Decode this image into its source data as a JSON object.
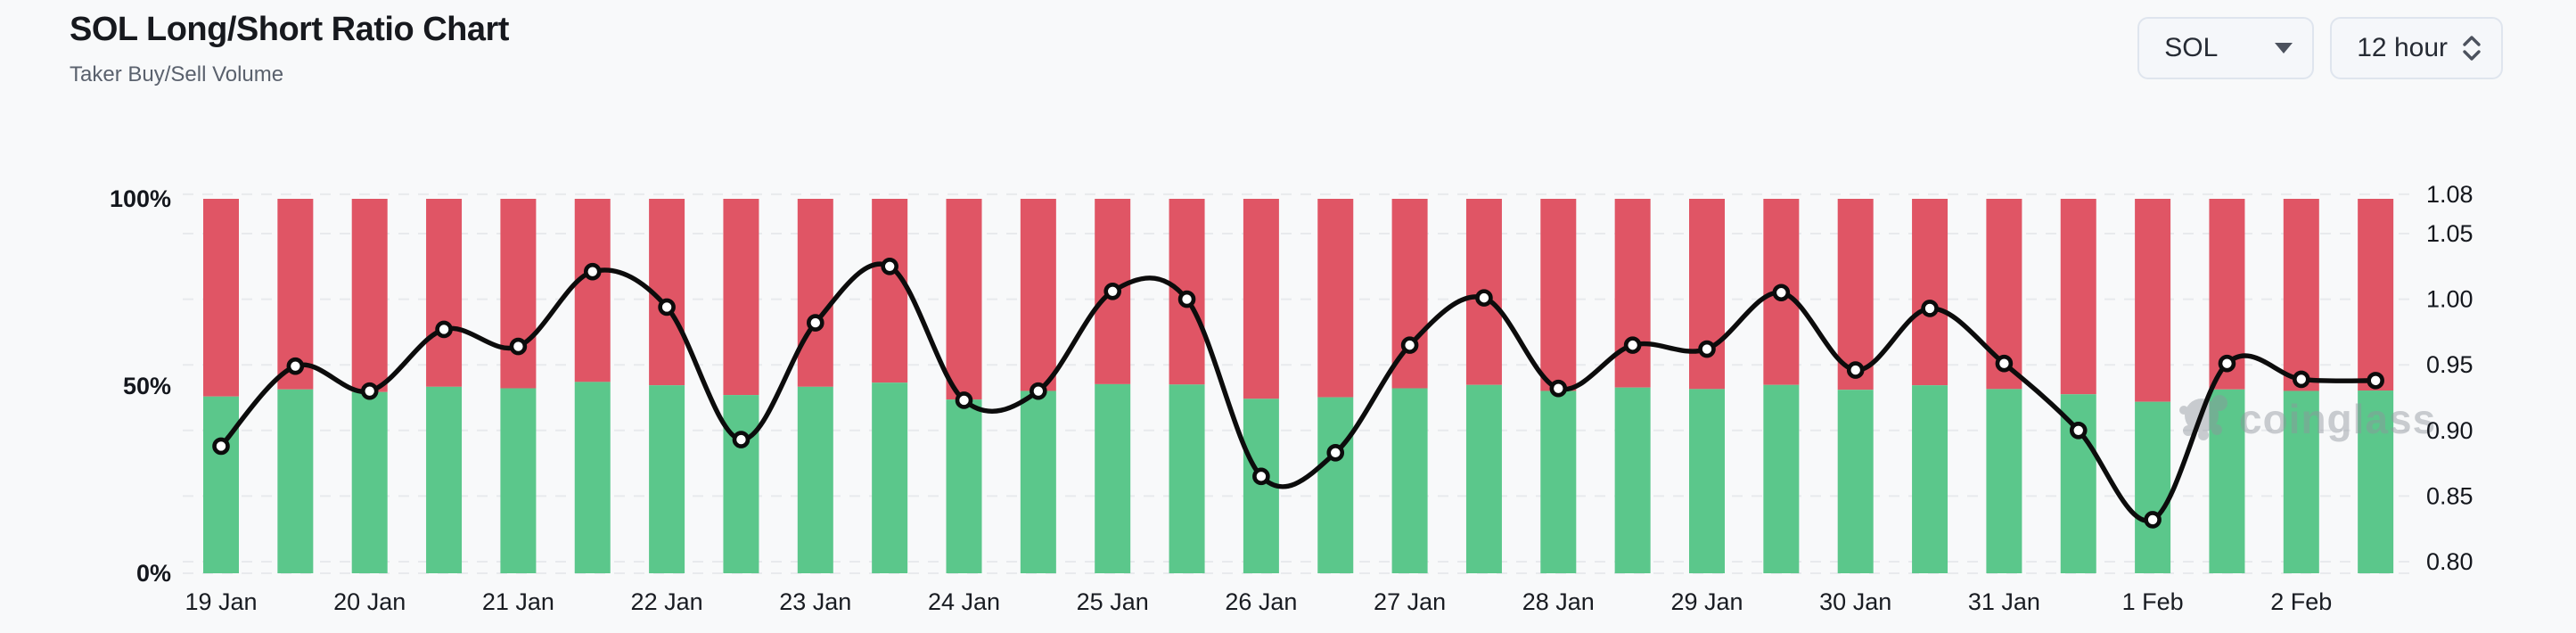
{
  "header": {
    "title": "SOL Long/Short Ratio Chart",
    "subtitle": "Taker Buy/Sell Volume"
  },
  "controls": {
    "symbol_select": {
      "value": "SOL"
    },
    "interval_select": {
      "value": "12 hour"
    }
  },
  "watermark": {
    "text": "coinglass"
  },
  "chart_data": {
    "type": "bar+line",
    "title": "SOL Long/Short Ratio Chart",
    "subtitle": "Taker Buy/Sell Volume",
    "interval": "12 hour",
    "points_per_day": 2,
    "x_tick_labels": [
      "19 Jan",
      "20 Jan",
      "21 Jan",
      "22 Jan",
      "23 Jan",
      "24 Jan",
      "25 Jan",
      "26 Jan",
      "27 Jan",
      "28 Jan",
      "29 Jan",
      "30 Jan",
      "31 Jan",
      "1 Feb",
      "2 Feb"
    ],
    "left_axis": {
      "ticks": [
        {
          "label": "100%",
          "value": 100
        },
        {
          "label": "50%",
          "value": 50
        },
        {
          "label": "0%",
          "value": 0
        }
      ],
      "range": [
        0,
        100
      ]
    },
    "right_axis": {
      "ticks": [
        "1.08",
        "1.05",
        "1.00",
        "0.95",
        "0.90",
        "0.85",
        "0.80"
      ],
      "range": [
        0.8,
        1.08
      ]
    },
    "grid": "horizontal-dashed",
    "legend_position": "none",
    "series": [
      {
        "name": "taker-buy-volume-pct",
        "type": "bar",
        "stack": "volume",
        "color": "#5bc78b",
        "axis": "left",
        "values": [
          47.2,
          49.1,
          48.4,
          49.8,
          49.4,
          51.1,
          50.2,
          47.6,
          49.8,
          50.9,
          46.4,
          48.7,
          50.5,
          50.4,
          46.6,
          47.0,
          49.4,
          50.3,
          48.7,
          49.6,
          49.2,
          50.3,
          49.0,
          50.2,
          49.2,
          47.8,
          45.8,
          49.1,
          48.7,
          48.8
        ]
      },
      {
        "name": "taker-sell-volume-pct",
        "type": "bar",
        "stack": "volume",
        "color": "#e05565",
        "axis": "left",
        "values": [
          52.8,
          50.9,
          51.6,
          50.2,
          50.6,
          48.9,
          49.8,
          52.4,
          50.2,
          49.1,
          53.6,
          51.3,
          49.5,
          49.6,
          53.4,
          53.0,
          50.6,
          49.7,
          51.3,
          50.4,
          50.8,
          49.7,
          51.0,
          49.8,
          50.8,
          52.2,
          54.2,
          50.9,
          51.3,
          51.2
        ]
      },
      {
        "name": "long-short-ratio",
        "type": "line",
        "color": "#0c0c0c",
        "axis": "right",
        "marker": "circle",
        "values": [
          0.888,
          0.949,
          0.93,
          0.977,
          0.964,
          1.021,
          0.994,
          0.893,
          0.982,
          1.025,
          0.923,
          0.93,
          1.006,
          1.0,
          0.865,
          0.883,
          0.965,
          1.001,
          0.932,
          0.965,
          0.962,
          1.005,
          0.946,
          0.993,
          0.951,
          0.9,
          0.832,
          0.951,
          0.939,
          0.938
        ]
      }
    ]
  }
}
